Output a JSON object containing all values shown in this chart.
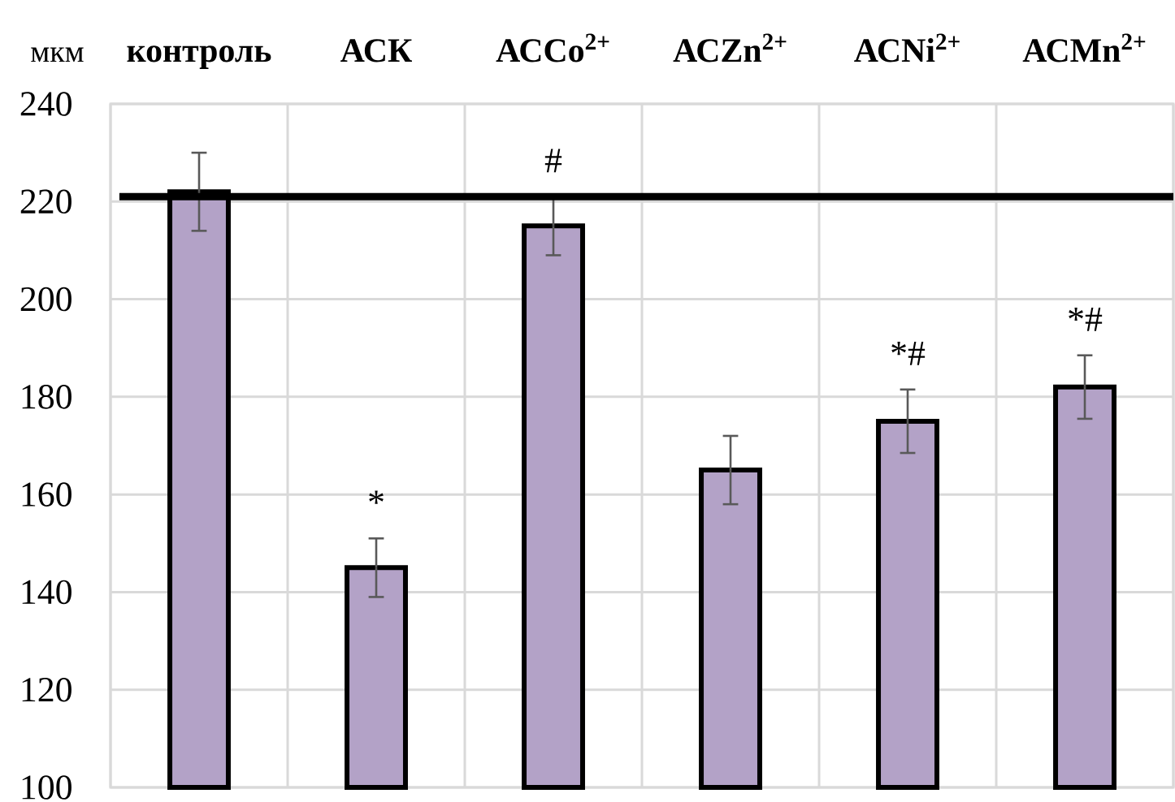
{
  "chart_data": {
    "type": "bar",
    "ylabel": "мкм",
    "categories": [
      "контроль",
      "АСК",
      "АСCo$^{2+}$",
      "АСZn$^{2+}$",
      "АСNi$^{2+}$",
      "АСMn$^{2+}$"
    ],
    "values": [
      222,
      145,
      215,
      165,
      175,
      182
    ],
    "errors": [
      8,
      6,
      6,
      7,
      6.5,
      6.5
    ],
    "color": "#b3a2c7",
    "ylim": [
      100,
      240
    ],
    "yticks": [
      100,
      120,
      140,
      160,
      180,
      200,
      220,
      240
    ],
    "grid": true,
    "ref_lines": [
      {
        "axis": "y",
        "value": 221,
        "color": "#000000"
      }
    ],
    "annotations": [
      {
        "text": "*",
        "x": "АСК",
        "y": 145
      },
      {
        "text": "#",
        "x": "АСCo$^{2+}$",
        "y": 215
      },
      {
        "text": "*#",
        "x": "АСNi$^{2+}$",
        "y": 175
      },
      {
        "text": "*#",
        "x": "АСMn$^{2+}$",
        "y": 182
      }
    ]
  }
}
